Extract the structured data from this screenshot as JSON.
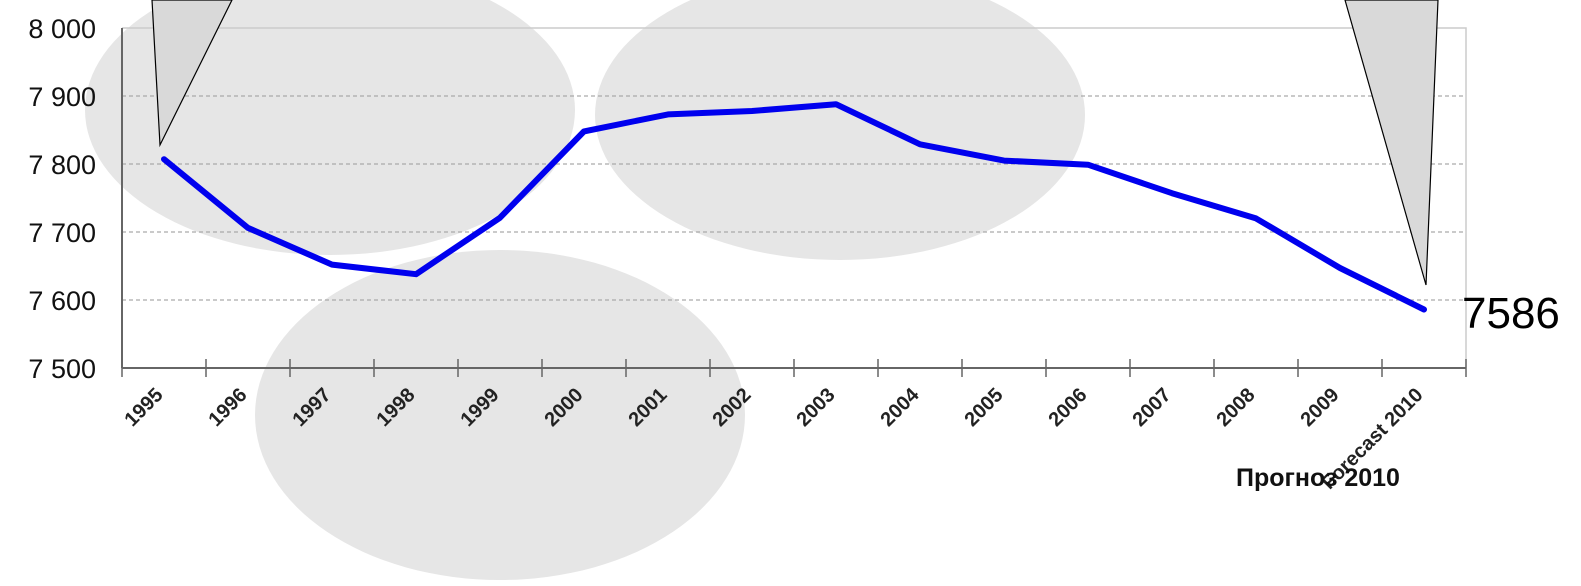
{
  "chart_data": {
    "type": "line",
    "title": "",
    "xlabel": "",
    "ylabel": "",
    "categories": [
      "1995",
      "1996",
      "1997",
      "1998",
      "1999",
      "2000",
      "2001",
      "2002",
      "2003",
      "2004",
      "2005",
      "2006",
      "2007",
      "2008",
      "2009",
      "Forecast 2010"
    ],
    "series": [
      {
        "values": [
          7807,
          7706,
          7652,
          7638,
          7721,
          7848,
          7873,
          7878,
          7888,
          7829,
          7805,
          7799,
          7757,
          7720,
          7647,
          7586
        ]
      }
    ],
    "y_ticks": [
      "8 000",
      "7 900",
      "7 800",
      "7 700",
      "7 600",
      "7 500"
    ],
    "ylim": [
      7500,
      8000
    ],
    "grid": "horizontal dashed",
    "end_value_label": "7586",
    "forecast_caption": "Прогноз 2010",
    "colors": {
      "line": "#0000ee",
      "grid": "#aaaaaa",
      "axis": "#666666",
      "background_blob": "#e6e6e6",
      "callout": "#d9d9d9"
    }
  }
}
